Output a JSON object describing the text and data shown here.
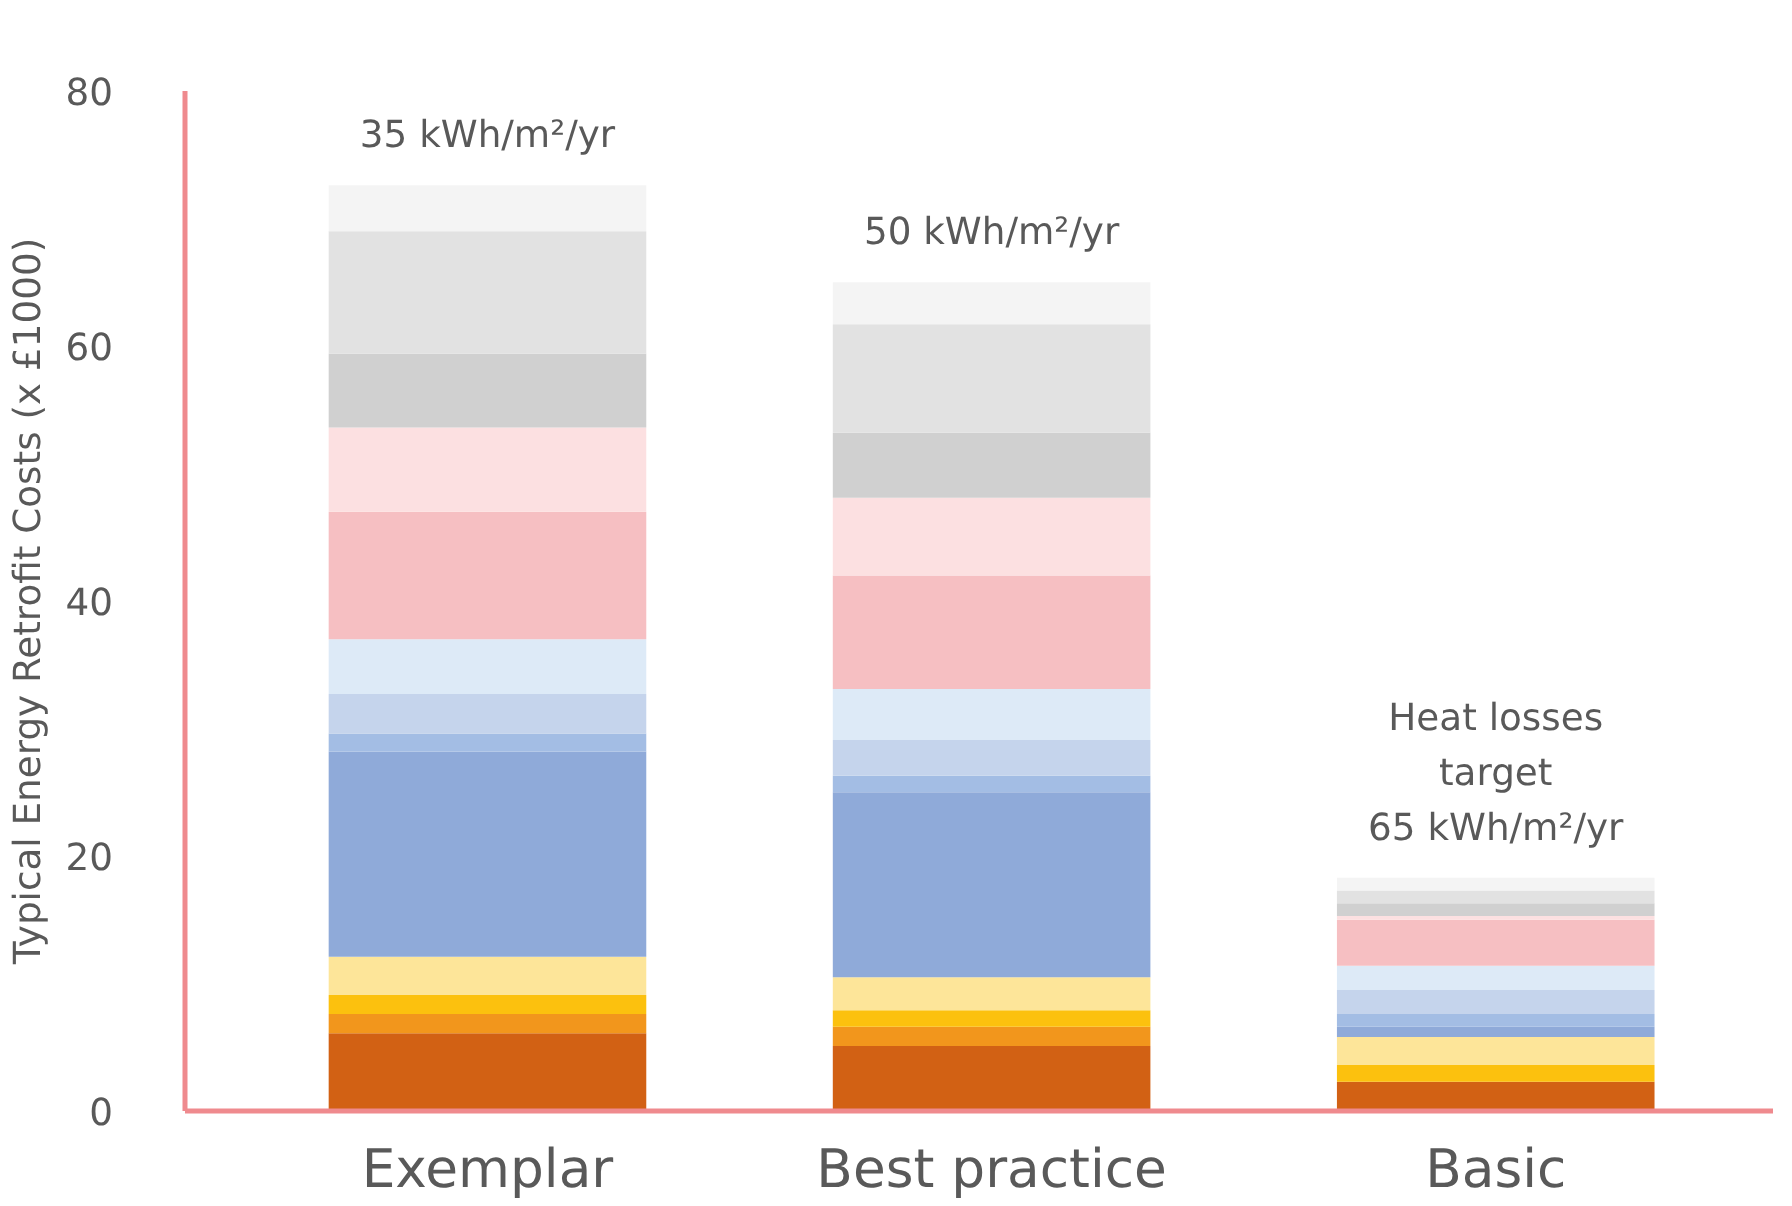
{
  "chart_data": {
    "type": "bar",
    "stacked": true,
    "ylabel": "Typical Energy Retrofit Costs (x £1000)",
    "categories": [
      "Exemplar",
      "Best practice",
      "Basic"
    ],
    "ylim": [
      0,
      80
    ],
    "yticks": [
      0,
      20,
      40,
      60,
      80
    ],
    "grid": false,
    "series": [
      {
        "color": "#d26114",
        "values": [
          6.1,
          5.1,
          2.3
        ]
      },
      {
        "color": "#f2961c",
        "values": [
          1.5,
          1.5,
          0
        ]
      },
      {
        "color": "#fcc10e",
        "values": [
          1.5,
          1.3,
          1.3
        ]
      },
      {
        "color": "#fde599",
        "values": [
          3.0,
          2.6,
          2.2
        ]
      },
      {
        "color": "#8faad9",
        "values": [
          16.1,
          14.5,
          0.8
        ]
      },
      {
        "color": "#a3bde4",
        "values": [
          1.4,
          1.3,
          1.0
        ]
      },
      {
        "color": "#c5d4ec",
        "values": [
          3.1,
          2.8,
          1.9
        ]
      },
      {
        "color": "#ddeaf7",
        "values": [
          4.3,
          4.0,
          1.9
        ]
      },
      {
        "color": "#f6bfc2",
        "values": [
          10.0,
          8.9,
          3.6
        ]
      },
      {
        "color": "#fce0e1",
        "values": [
          6.6,
          6.1,
          0.3
        ]
      },
      {
        "color": "#d0d0d0",
        "values": [
          5.8,
          5.1,
          1.0
        ]
      },
      {
        "color": "#e2e2e2",
        "values": [
          9.6,
          8.5,
          1.0
        ]
      },
      {
        "color": "#f4f4f4",
        "values": [
          3.6,
          3.3,
          1.0
        ]
      }
    ],
    "annotations": [
      "35 kWh/m²/yr",
      "50 kWh/m²/yr",
      "Heat losses\ntarget\n65 kWh/m²/yr"
    ]
  }
}
